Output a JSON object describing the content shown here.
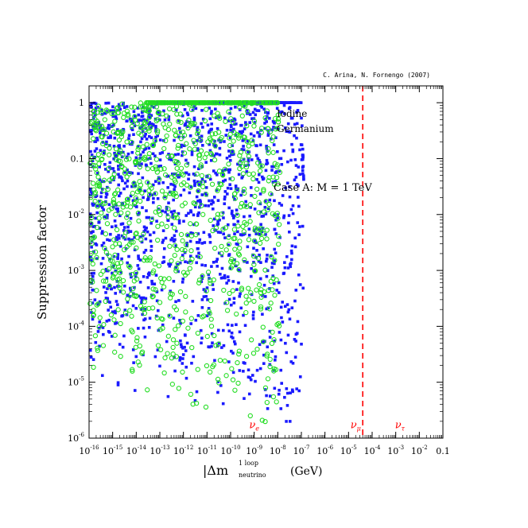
{
  "credit": "C. Arina, N. Fornengo (2007)",
  "annotation": "Case A: M = 1 TeV",
  "chart_data": {
    "type": "scatter",
    "xlabel": "|Δm",
    "xlabel_sup": "1 loop",
    "xlabel_sub": "neutrino",
    "xlabel_unit": "(GeV)",
    "ylabel": "Suppression factor",
    "x_scale": "log",
    "y_scale": "log",
    "xlim": [
      1e-16,
      0.1
    ],
    "ylim": [
      1e-06,
      2
    ],
    "x_ticks": [
      {
        "value": 1e-16,
        "base": "10",
        "exp": "-16"
      },
      {
        "value": 1e-15,
        "base": "10",
        "exp": "-15"
      },
      {
        "value": 1e-14,
        "base": "10",
        "exp": "-14"
      },
      {
        "value": 1e-13,
        "base": "10",
        "exp": "-13"
      },
      {
        "value": 1e-12,
        "base": "10",
        "exp": "-12"
      },
      {
        "value": 1e-11,
        "base": "10",
        "exp": "-11"
      },
      {
        "value": 1e-10,
        "base": "10",
        "exp": "-10"
      },
      {
        "value": 1e-09,
        "base": "10",
        "exp": "-9"
      },
      {
        "value": 1e-08,
        "base": "10",
        "exp": "-8"
      },
      {
        "value": 1e-07,
        "base": "10",
        "exp": "-7"
      },
      {
        "value": 1e-06,
        "base": "10",
        "exp": "-6"
      },
      {
        "value": 1e-05,
        "base": "10",
        "exp": "-5"
      },
      {
        "value": 0.0001,
        "base": "10",
        "exp": "-4"
      },
      {
        "value": 0.001,
        "base": "10",
        "exp": "-3"
      },
      {
        "value": 0.01,
        "base": "10",
        "exp": "-2"
      },
      {
        "value": 0.1,
        "base": "0.1",
        "exp": ""
      }
    ],
    "y_ticks": [
      {
        "value": 1,
        "base": "1",
        "exp": ""
      },
      {
        "value": 0.1,
        "base": "0.1",
        "exp": ""
      },
      {
        "value": 0.01,
        "base": "10",
        "exp": "-2"
      },
      {
        "value": 0.001,
        "base": "10",
        "exp": "-3"
      },
      {
        "value": 0.0001,
        "base": "10",
        "exp": "-4"
      },
      {
        "value": 1e-05,
        "base": "10",
        "exp": "-5"
      },
      {
        "value": 1e-06,
        "base": "10",
        "exp": "-6"
      }
    ],
    "series": [
      {
        "name": "Iodine",
        "marker": "square",
        "color": "#1a1aff",
        "cutoff_x": 1e-07
      },
      {
        "name": "Germanium",
        "marker": "circle",
        "color": "#22dd22",
        "cutoff_x": 1e-08
      }
    ],
    "vlines": [
      {
        "x": 4e-05,
        "color": "#ff0000",
        "style": "dashed"
      }
    ],
    "markers_text": [
      {
        "text": "ν",
        "sub": "e",
        "x": 1e-09,
        "y": 1.5e-06
      },
      {
        "text": "ν",
        "sub": "μ",
        "x": 2e-05,
        "y": 1.5e-06
      },
      {
        "text": "ν",
        "sub": "τ",
        "x": 0.0015,
        "y": 1.5e-06
      }
    ],
    "legend_placement": "top-right",
    "grid": false
  },
  "colors": {
    "iodine": "#1a1aff",
    "germanium": "#22dd22",
    "reference_line": "#ff0000",
    "axes": "#000000"
  }
}
